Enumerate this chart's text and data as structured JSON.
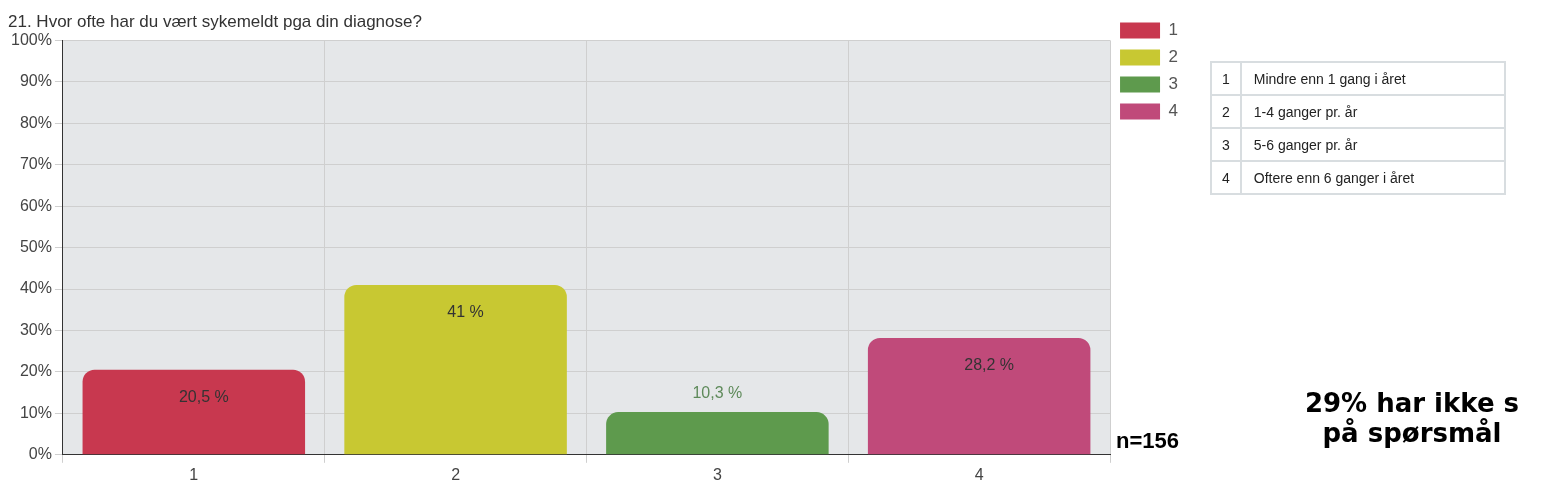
{
  "chart_data": {
    "type": "bar",
    "title": "21. Hvor ofte har du vært sykemeldt pga din diagnose?",
    "categories": [
      "1",
      "2",
      "3",
      "4"
    ],
    "series": [
      {
        "name": "1",
        "color": "#c8384f",
        "values": [
          20.5,
          null,
          null,
          null
        ],
        "value_labels": [
          "20,5 %",
          null,
          null,
          null
        ]
      },
      {
        "name": "2",
        "color": "#c8c832",
        "values": [
          null,
          41,
          null,
          null
        ],
        "value_labels": [
          null,
          "41 %",
          null,
          null
        ]
      },
      {
        "name": "3",
        "color": "#5e9a4d",
        "values": [
          null,
          null,
          10.3,
          null
        ],
        "value_labels": [
          null,
          null,
          "10,3 %",
          null
        ]
      },
      {
        "name": "4",
        "color": "#c04a7a",
        "values": [
          null,
          null,
          null,
          28.2
        ],
        "value_labels": [
          null,
          null,
          null,
          "28,2 %"
        ]
      }
    ],
    "ylim": [
      0,
      100
    ],
    "yticks": [
      {
        "value": 0,
        "label": "0%"
      },
      {
        "value": 10,
        "label": "10%"
      },
      {
        "value": 20,
        "label": "20%"
      },
      {
        "value": 30,
        "label": "30%"
      },
      {
        "value": 40,
        "label": "40%"
      },
      {
        "value": 50,
        "label": "50%"
      },
      {
        "value": 60,
        "label": "60%"
      },
      {
        "value": 70,
        "label": "70%"
      },
      {
        "value": 80,
        "label": "80%"
      },
      {
        "value": 90,
        "label": "90%"
      },
      {
        "value": 100,
        "label": "100%"
      }
    ],
    "grid": true,
    "legend": "right",
    "annotations": [
      "Mindre enn 1 gang i året",
      "1-4 ganger pr. år",
      "5-6 ganger pr. år",
      "Oftere enn 6 ganger i året",
      "n=156",
      "29% har ikke s",
      "på spørsmål"
    ]
  }
}
